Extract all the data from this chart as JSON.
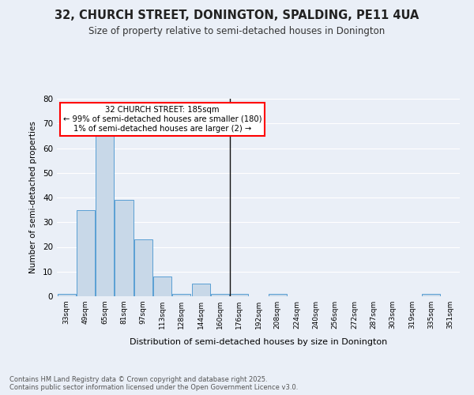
{
  "title": "32, CHURCH STREET, DONINGTON, SPALDING, PE11 4UA",
  "subtitle": "Size of property relative to semi-detached houses in Donington",
  "xlabel": "Distribution of semi-detached houses by size in Donington",
  "ylabel": "Number of semi-detached properties",
  "bar_color": "#c8d8e8",
  "bar_edge_color": "#5a9fd4",
  "bins": [
    "33sqm",
    "49sqm",
    "65sqm",
    "81sqm",
    "97sqm",
    "113sqm",
    "128sqm",
    "144sqm",
    "160sqm",
    "176sqm",
    "192sqm",
    "208sqm",
    "224sqm",
    "240sqm",
    "256sqm",
    "272sqm",
    "287sqm",
    "303sqm",
    "319sqm",
    "335sqm",
    "351sqm"
  ],
  "values": [
    1,
    35,
    67,
    39,
    23,
    8,
    1,
    5,
    1,
    1,
    0,
    1,
    0,
    0,
    0,
    0,
    0,
    0,
    0,
    1,
    0
  ],
  "ylim": [
    0,
    80
  ],
  "yticks": [
    0,
    10,
    20,
    30,
    40,
    50,
    60,
    70,
    80
  ],
  "annotation_text": "32 CHURCH STREET: 185sqm\n← 99% of semi-detached houses are smaller (180)\n1% of semi-detached houses are larger (2) →",
  "annotation_bar_index": 9,
  "footnote": "Contains HM Land Registry data © Crown copyright and database right 2025.\nContains public sector information licensed under the Open Government Licence v3.0.",
  "background_color": "#eaeff7",
  "plot_bg_color": "#eaeff7",
  "grid_color": "#ffffff"
}
